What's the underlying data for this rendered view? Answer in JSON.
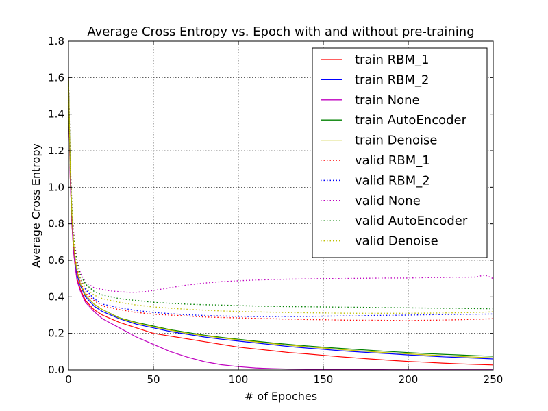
{
  "chart_data": {
    "type": "line",
    "title": "Average Cross Entropy vs. Epoch with and without pre-training",
    "xlabel": "# of Epoches",
    "ylabel": "Average Cross Entropy",
    "xlim": [
      0,
      250
    ],
    "ylim": [
      0.0,
      1.8
    ],
    "grid": true,
    "legend_position": "top-right",
    "xticks": [
      0,
      50,
      100,
      150,
      200,
      250
    ],
    "xtick_labels": [
      "0",
      "50",
      "100",
      "150",
      "200",
      "250"
    ],
    "yticks": [
      0.0,
      0.2,
      0.4,
      0.6,
      0.8,
      1.0,
      1.2,
      1.4,
      1.6,
      1.8
    ],
    "ytick_labels": [
      "0.0",
      "0.2",
      "0.4",
      "0.6",
      "0.8",
      "1.0",
      "1.2",
      "1.4",
      "1.6",
      "1.8"
    ],
    "series": [
      {
        "name": "train RBM_1",
        "color": "#ff0000",
        "style": "solid",
        "x": [
          0,
          1,
          2,
          3,
          4,
          5,
          7,
          10,
          15,
          20,
          30,
          40,
          50,
          60,
          70,
          80,
          90,
          100,
          110,
          120,
          130,
          140,
          150,
          160,
          170,
          180,
          190,
          200,
          210,
          220,
          230,
          240,
          250
        ],
        "y": [
          1.6,
          1.05,
          0.8,
          0.65,
          0.56,
          0.5,
          0.44,
          0.38,
          0.33,
          0.3,
          0.26,
          0.23,
          0.2,
          0.185,
          0.17,
          0.155,
          0.14,
          0.125,
          0.115,
          0.105,
          0.095,
          0.088,
          0.08,
          0.072,
          0.065,
          0.058,
          0.052,
          0.046,
          0.042,
          0.037,
          0.033,
          0.03,
          0.027
        ]
      },
      {
        "name": "train RBM_2",
        "color": "#0000ff",
        "style": "solid",
        "x": [
          0,
          1,
          2,
          3,
          4,
          5,
          7,
          10,
          15,
          20,
          30,
          40,
          50,
          60,
          70,
          80,
          90,
          100,
          110,
          120,
          130,
          140,
          150,
          160,
          170,
          180,
          190,
          200,
          210,
          220,
          230,
          240,
          250
        ],
        "y": [
          1.6,
          1.08,
          0.82,
          0.67,
          0.58,
          0.52,
          0.46,
          0.4,
          0.35,
          0.32,
          0.28,
          0.25,
          0.23,
          0.21,
          0.195,
          0.18,
          0.168,
          0.158,
          0.148,
          0.138,
          0.128,
          0.12,
          0.113,
          0.105,
          0.099,
          0.093,
          0.088,
          0.082,
          0.077,
          0.072,
          0.068,
          0.064,
          0.06
        ]
      },
      {
        "name": "train None",
        "color": "#bf00bf",
        "style": "solid",
        "x": [
          0,
          1,
          2,
          3,
          4,
          5,
          7,
          10,
          15,
          20,
          25,
          30,
          35,
          40,
          45,
          50,
          60,
          70,
          80,
          90,
          100,
          110,
          120,
          130,
          140,
          150,
          160,
          170,
          180,
          190,
          200,
          210,
          220,
          230,
          240,
          250
        ],
        "y": [
          1.6,
          1.05,
          0.8,
          0.65,
          0.56,
          0.49,
          0.43,
          0.37,
          0.32,
          0.28,
          0.255,
          0.23,
          0.205,
          0.18,
          0.16,
          0.14,
          0.1,
          0.07,
          0.045,
          0.028,
          0.018,
          0.011,
          0.007,
          0.005,
          0.004,
          0.003,
          0.002,
          0.002,
          0.002,
          0.001,
          0.001,
          0.001,
          0.001,
          0.001,
          0.001,
          0.001
        ]
      },
      {
        "name": "train AutoEncoder",
        "color": "#008000",
        "style": "solid",
        "x": [
          0,
          1,
          2,
          3,
          4,
          5,
          7,
          10,
          15,
          20,
          30,
          40,
          50,
          60,
          70,
          80,
          90,
          100,
          110,
          120,
          130,
          140,
          150,
          160,
          170,
          180,
          190,
          200,
          210,
          220,
          230,
          240,
          250
        ],
        "y": [
          1.6,
          1.1,
          0.84,
          0.69,
          0.6,
          0.54,
          0.47,
          0.41,
          0.36,
          0.33,
          0.285,
          0.26,
          0.24,
          0.22,
          0.205,
          0.19,
          0.178,
          0.168,
          0.158,
          0.148,
          0.14,
          0.132,
          0.125,
          0.118,
          0.112,
          0.106,
          0.1,
          0.095,
          0.09,
          0.086,
          0.082,
          0.078,
          0.075
        ]
      },
      {
        "name": "train Denoise",
        "color": "#bfbf00",
        "style": "solid",
        "x": [
          0,
          1,
          2,
          3,
          4,
          5,
          7,
          10,
          15,
          20,
          30,
          40,
          50,
          60,
          70,
          80,
          90,
          100,
          110,
          120,
          130,
          140,
          150,
          160,
          170,
          180,
          190,
          200,
          210,
          220,
          230,
          240,
          250
        ],
        "y": [
          1.6,
          1.1,
          0.84,
          0.69,
          0.6,
          0.54,
          0.47,
          0.41,
          0.36,
          0.33,
          0.283,
          0.257,
          0.236,
          0.217,
          0.2,
          0.187,
          0.175,
          0.165,
          0.154,
          0.144,
          0.135,
          0.127,
          0.12,
          0.112,
          0.105,
          0.099,
          0.093,
          0.088,
          0.083,
          0.078,
          0.074,
          0.07,
          0.066
        ]
      },
      {
        "name": "valid RBM_1",
        "color": "#ff0000",
        "style": "dotted",
        "x": [
          0,
          1,
          2,
          3,
          4,
          5,
          7,
          10,
          15,
          20,
          30,
          40,
          50,
          60,
          70,
          80,
          90,
          100,
          110,
          120,
          130,
          140,
          150,
          160,
          170,
          180,
          190,
          200,
          210,
          220,
          230,
          240,
          250
        ],
        "y": [
          1.6,
          1.1,
          0.85,
          0.7,
          0.61,
          0.55,
          0.48,
          0.42,
          0.38,
          0.35,
          0.33,
          0.315,
          0.305,
          0.3,
          0.295,
          0.29,
          0.287,
          0.285,
          0.282,
          0.28,
          0.278,
          0.276,
          0.275,
          0.273,
          0.272,
          0.272,
          0.271,
          0.27,
          0.272,
          0.273,
          0.275,
          0.278,
          0.28
        ]
      },
      {
        "name": "valid RBM_2",
        "color": "#0000ff",
        "style": "dotted",
        "x": [
          0,
          1,
          2,
          3,
          4,
          5,
          7,
          10,
          15,
          20,
          30,
          40,
          50,
          60,
          70,
          80,
          90,
          100,
          110,
          120,
          130,
          140,
          150,
          160,
          170,
          180,
          190,
          200,
          210,
          220,
          230,
          240,
          250
        ],
        "y": [
          1.6,
          1.12,
          0.87,
          0.72,
          0.63,
          0.57,
          0.5,
          0.44,
          0.39,
          0.36,
          0.34,
          0.325,
          0.315,
          0.308,
          0.302,
          0.298,
          0.295,
          0.293,
          0.292,
          0.292,
          0.292,
          0.293,
          0.294,
          0.295,
          0.296,
          0.298,
          0.299,
          0.3,
          0.302,
          0.303,
          0.304,
          0.305,
          0.306
        ]
      },
      {
        "name": "valid None",
        "color": "#bf00bf",
        "style": "dotted",
        "x": [
          0,
          1,
          2,
          3,
          4,
          5,
          7,
          10,
          15,
          20,
          25,
          30,
          35,
          40,
          45,
          50,
          60,
          70,
          80,
          90,
          100,
          110,
          120,
          130,
          140,
          150,
          160,
          170,
          180,
          190,
          200,
          210,
          220,
          230,
          240,
          245,
          250
        ],
        "y": [
          1.6,
          1.15,
          0.9,
          0.76,
          0.67,
          0.6,
          0.53,
          0.48,
          0.45,
          0.44,
          0.432,
          0.428,
          0.425,
          0.425,
          0.428,
          0.435,
          0.45,
          0.465,
          0.475,
          0.483,
          0.488,
          0.492,
          0.495,
          0.497,
          0.498,
          0.5,
          0.5,
          0.501,
          0.502,
          0.503,
          0.503,
          0.505,
          0.506,
          0.507,
          0.508,
          0.52,
          0.5
        ]
      },
      {
        "name": "valid AutoEncoder",
        "color": "#008000",
        "style": "dotted",
        "x": [
          0,
          1,
          2,
          3,
          4,
          5,
          7,
          10,
          15,
          20,
          30,
          40,
          50,
          60,
          70,
          80,
          90,
          100,
          110,
          120,
          130,
          140,
          150,
          160,
          170,
          180,
          190,
          200,
          210,
          220,
          230,
          240,
          250
        ],
        "y": [
          1.6,
          1.15,
          0.89,
          0.74,
          0.65,
          0.59,
          0.52,
          0.47,
          0.43,
          0.41,
          0.39,
          0.38,
          0.37,
          0.365,
          0.36,
          0.357,
          0.355,
          0.352,
          0.35,
          0.348,
          0.347,
          0.346,
          0.345,
          0.344,
          0.343,
          0.342,
          0.341,
          0.34,
          0.339,
          0.338,
          0.337,
          0.336,
          0.335
        ]
      },
      {
        "name": "valid Denoise",
        "color": "#bfbf00",
        "style": "dotted",
        "x": [
          0,
          1,
          2,
          3,
          4,
          5,
          7,
          10,
          15,
          20,
          30,
          40,
          50,
          60,
          70,
          80,
          90,
          100,
          110,
          120,
          130,
          140,
          150,
          160,
          170,
          180,
          190,
          200,
          210,
          220,
          230,
          240,
          250
        ],
        "y": [
          1.6,
          1.13,
          0.87,
          0.72,
          0.63,
          0.57,
          0.5,
          0.45,
          0.41,
          0.39,
          0.37,
          0.355,
          0.345,
          0.338,
          0.332,
          0.327,
          0.323,
          0.32,
          0.318,
          0.316,
          0.314,
          0.313,
          0.312,
          0.311,
          0.31,
          0.31,
          0.31,
          0.31,
          0.311,
          0.312,
          0.313,
          0.315,
          0.318
        ]
      }
    ]
  }
}
